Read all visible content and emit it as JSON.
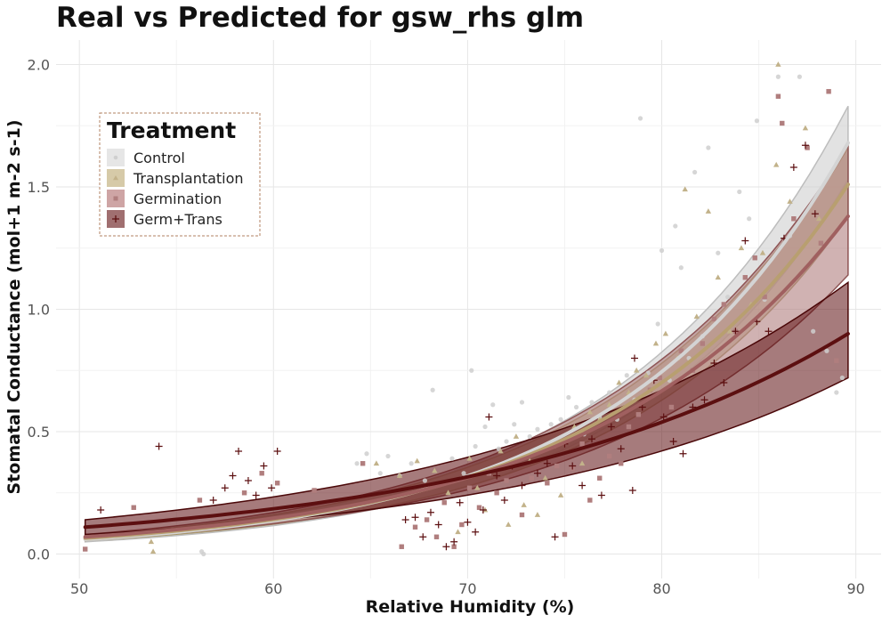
{
  "chart_data": {
    "type": "scatter",
    "title": "Real vs Predicted for gsw_rhs glm",
    "xlabel": "Relative Humidity (%)",
    "ylabel": "Stomatal Conductance (mol+1 m-2 s-1)",
    "xlim": [
      48.8,
      91.3
    ],
    "ylim": [
      -0.1,
      2.1
    ],
    "x_ticks": [
      "50",
      "60",
      "70",
      "80",
      "90"
    ],
    "y_ticks": [
      "0.0",
      "0.5",
      "1.0",
      "1.5",
      "2.0"
    ],
    "grid": true,
    "legend": {
      "title": "Treatment",
      "position": "top-left",
      "items": [
        "Control",
        "Transplantation",
        "Germination",
        "Germ+Trans"
      ]
    },
    "series": [
      {
        "name": "Control",
        "color": "#cfcfcf",
        "marker": "circle",
        "fit": {
          "x_range": [
            50.3,
            89.6
          ],
          "fit_start": 0.06,
          "fit_end": 1.68,
          "lower_start": 0.05,
          "lower_end": 1.53,
          "upper_start": 0.07,
          "upper_end": 1.83
        },
        "points": [
          [
            56.4,
            0.0
          ],
          [
            56.3,
            0.01
          ],
          [
            64.3,
            0.37
          ],
          [
            64.8,
            0.41
          ],
          [
            65.5,
            0.33
          ],
          [
            65.9,
            0.4
          ],
          [
            66.5,
            0.32
          ],
          [
            67.1,
            0.37
          ],
          [
            67.8,
            0.3
          ],
          [
            68.2,
            0.67
          ],
          [
            69.2,
            0.39
          ],
          [
            69.8,
            0.33
          ],
          [
            70.2,
            0.75
          ],
          [
            70.4,
            0.44
          ],
          [
            70.9,
            0.52
          ],
          [
            71.3,
            0.61
          ],
          [
            71.6,
            0.43
          ],
          [
            72.0,
            0.46
          ],
          [
            72.4,
            0.53
          ],
          [
            72.8,
            0.62
          ],
          [
            73.2,
            0.48
          ],
          [
            73.6,
            0.51
          ],
          [
            74.0,
            0.44
          ],
          [
            74.3,
            0.53
          ],
          [
            74.8,
            0.55
          ],
          [
            75.2,
            0.64
          ],
          [
            75.6,
            0.6
          ],
          [
            76.0,
            0.49
          ],
          [
            76.4,
            0.62
          ],
          [
            76.8,
            0.56
          ],
          [
            77.3,
            0.66
          ],
          [
            77.7,
            0.55
          ],
          [
            78.2,
            0.73
          ],
          [
            78.6,
            0.63
          ],
          [
            78.9,
            1.78
          ],
          [
            79.3,
            0.74
          ],
          [
            79.8,
            0.94
          ],
          [
            80.0,
            1.24
          ],
          [
            80.4,
            0.71
          ],
          [
            80.7,
            1.34
          ],
          [
            81.0,
            1.17
          ],
          [
            81.4,
            0.8
          ],
          [
            81.7,
            1.56
          ],
          [
            82.1,
            0.89
          ],
          [
            82.4,
            1.66
          ],
          [
            82.9,
            1.23
          ],
          [
            83.4,
            1.05
          ],
          [
            84.0,
            1.48
          ],
          [
            84.5,
            1.37
          ],
          [
            84.9,
            1.77
          ],
          [
            85.3,
            1.04
          ],
          [
            86.0,
            1.95
          ],
          [
            86.6,
            1.3
          ],
          [
            87.1,
            1.95
          ],
          [
            87.8,
            0.91
          ],
          [
            88.5,
            0.83
          ],
          [
            89.0,
            0.66
          ],
          [
            89.3,
            0.72
          ]
        ]
      },
      {
        "name": "Transplantation",
        "color": "#c2b28a",
        "marker": "triangle",
        "fit": {
          "x_range": [
            50.3,
            89.6
          ],
          "fit_start": 0.065,
          "fit_end": 1.51,
          "lower_start": 0.055,
          "lower_end": 1.38,
          "upper_start": 0.075,
          "upper_end": 1.66
        },
        "points": [
          [
            53.8,
            0.01
          ],
          [
            53.7,
            0.05
          ],
          [
            65.3,
            0.37
          ],
          [
            66.5,
            0.32
          ],
          [
            67.4,
            0.38
          ],
          [
            68.3,
            0.34
          ],
          [
            69.0,
            0.25
          ],
          [
            69.5,
            0.09
          ],
          [
            70.1,
            0.39
          ],
          [
            70.5,
            0.27
          ],
          [
            70.9,
            0.18
          ],
          [
            71.3,
            0.35
          ],
          [
            71.7,
            0.42
          ],
          [
            72.1,
            0.12
          ],
          [
            72.5,
            0.48
          ],
          [
            72.9,
            0.2
          ],
          [
            73.2,
            0.38
          ],
          [
            73.6,
            0.16
          ],
          [
            74.0,
            0.31
          ],
          [
            74.4,
            0.44
          ],
          [
            74.8,
            0.24
          ],
          [
            75.2,
            0.47
          ],
          [
            75.5,
            0.52
          ],
          [
            75.9,
            0.37
          ],
          [
            76.3,
            0.58
          ],
          [
            76.8,
            0.55
          ],
          [
            77.3,
            0.61
          ],
          [
            77.8,
            0.7
          ],
          [
            78.3,
            0.66
          ],
          [
            78.7,
            0.75
          ],
          [
            79.2,
            0.73
          ],
          [
            79.7,
            0.86
          ],
          [
            80.2,
            0.9
          ],
          [
            80.8,
            0.8
          ],
          [
            81.2,
            1.49
          ],
          [
            81.8,
            0.97
          ],
          [
            82.4,
            1.4
          ],
          [
            82.9,
            1.13
          ],
          [
            83.5,
            0.91
          ],
          [
            84.1,
            1.25
          ],
          [
            84.6,
            1.02
          ],
          [
            85.2,
            1.23
          ],
          [
            85.9,
            1.59
          ],
          [
            86.0,
            2.0
          ],
          [
            86.6,
            1.44
          ],
          [
            87.4,
            1.74
          ],
          [
            88.1,
            1.37
          ]
        ]
      },
      {
        "name": "Germination",
        "color": "#b07e7e",
        "marker": "square",
        "fit": {
          "x_range": [
            50.3,
            89.6
          ],
          "fit_start": 0.07,
          "fit_end": 1.38,
          "lower_start": 0.06,
          "lower_end": 1.14,
          "upper_start": 0.08,
          "upper_end": 1.67
        },
        "points": [
          [
            50.3,
            0.02
          ],
          [
            52.8,
            0.19
          ],
          [
            56.2,
            0.22
          ],
          [
            58.5,
            0.25
          ],
          [
            59.4,
            0.33
          ],
          [
            60.2,
            0.29
          ],
          [
            62.1,
            0.26
          ],
          [
            64.6,
            0.37
          ],
          [
            66.6,
            0.03
          ],
          [
            67.3,
            0.11
          ],
          [
            67.9,
            0.14
          ],
          [
            68.4,
            0.07
          ],
          [
            68.8,
            0.21
          ],
          [
            69.3,
            0.03
          ],
          [
            69.7,
            0.12
          ],
          [
            70.1,
            0.27
          ],
          [
            70.6,
            0.19
          ],
          [
            71.1,
            0.33
          ],
          [
            71.5,
            0.25
          ],
          [
            72.0,
            0.3
          ],
          [
            72.4,
            0.38
          ],
          [
            72.8,
            0.16
          ],
          [
            73.3,
            0.31
          ],
          [
            73.7,
            0.42
          ],
          [
            74.1,
            0.29
          ],
          [
            74.6,
            0.36
          ],
          [
            75.0,
            0.08
          ],
          [
            75.4,
            0.35
          ],
          [
            75.9,
            0.45
          ],
          [
            76.3,
            0.22
          ],
          [
            76.8,
            0.31
          ],
          [
            77.3,
            0.4
          ],
          [
            77.9,
            0.37
          ],
          [
            78.3,
            0.52
          ],
          [
            78.8,
            0.57
          ],
          [
            79.4,
            0.67
          ],
          [
            79.9,
            0.72
          ],
          [
            80.5,
            0.6
          ],
          [
            81.0,
            0.83
          ],
          [
            81.6,
            0.75
          ],
          [
            82.1,
            0.86
          ],
          [
            82.7,
            0.96
          ],
          [
            83.2,
            1.02
          ],
          [
            83.8,
            0.91
          ],
          [
            84.3,
            1.13
          ],
          [
            84.8,
            1.21
          ],
          [
            85.3,
            1.05
          ],
          [
            86.0,
            1.87
          ],
          [
            86.2,
            1.76
          ],
          [
            86.8,
            1.37
          ],
          [
            87.5,
            1.66
          ],
          [
            88.2,
            1.27
          ],
          [
            88.6,
            1.89
          ],
          [
            89.0,
            0.79
          ]
        ]
      },
      {
        "name": "Germ+Trans",
        "color": "#5c0f10",
        "marker": "plus",
        "fit": {
          "x_range": [
            50.3,
            89.6
          ],
          "fit_start": 0.11,
          "fit_end": 0.9,
          "lower_start": 0.08,
          "lower_end": 0.72,
          "upper_start": 0.14,
          "upper_end": 1.11
        },
        "points": [
          [
            51.1,
            0.18
          ],
          [
            54.1,
            0.44
          ],
          [
            56.9,
            0.22
          ],
          [
            57.5,
            0.27
          ],
          [
            57.9,
            0.32
          ],
          [
            58.2,
            0.42
          ],
          [
            58.7,
            0.3
          ],
          [
            59.1,
            0.24
          ],
          [
            59.5,
            0.36
          ],
          [
            59.9,
            0.27
          ],
          [
            60.2,
            0.42
          ],
          [
            66.8,
            0.14
          ],
          [
            67.3,
            0.15
          ],
          [
            67.7,
            0.07
          ],
          [
            68.1,
            0.17
          ],
          [
            68.5,
            0.12
          ],
          [
            68.9,
            0.03
          ],
          [
            69.3,
            0.05
          ],
          [
            69.6,
            0.21
          ],
          [
            70.0,
            0.13
          ],
          [
            70.4,
            0.09
          ],
          [
            70.8,
            0.18
          ],
          [
            71.1,
            0.56
          ],
          [
            71.5,
            0.32
          ],
          [
            71.9,
            0.22
          ],
          [
            72.3,
            0.36
          ],
          [
            72.8,
            0.28
          ],
          [
            73.2,
            0.41
          ],
          [
            73.6,
            0.33
          ],
          [
            74.1,
            0.37
          ],
          [
            74.5,
            0.07
          ],
          [
            75.0,
            0.45
          ],
          [
            75.4,
            0.36
          ],
          [
            75.9,
            0.28
          ],
          [
            76.4,
            0.47
          ],
          [
            76.9,
            0.24
          ],
          [
            77.4,
            0.52
          ],
          [
            77.9,
            0.43
          ],
          [
            78.6,
            0.8
          ],
          [
            78.5,
            0.26
          ],
          [
            79.0,
            0.6
          ],
          [
            79.6,
            0.71
          ],
          [
            80.1,
            0.56
          ],
          [
            80.6,
            0.46
          ],
          [
            81.1,
            0.41
          ],
          [
            81.6,
            0.6
          ],
          [
            82.2,
            0.63
          ],
          [
            82.7,
            0.78
          ],
          [
            83.2,
            0.7
          ],
          [
            83.8,
            0.91
          ],
          [
            84.3,
            1.28
          ],
          [
            84.9,
            0.95
          ],
          [
            85.5,
            0.91
          ],
          [
            86.3,
            1.29
          ],
          [
            86.8,
            1.58
          ],
          [
            87.4,
            1.67
          ],
          [
            87.9,
            1.39
          ]
        ]
      }
    ]
  }
}
